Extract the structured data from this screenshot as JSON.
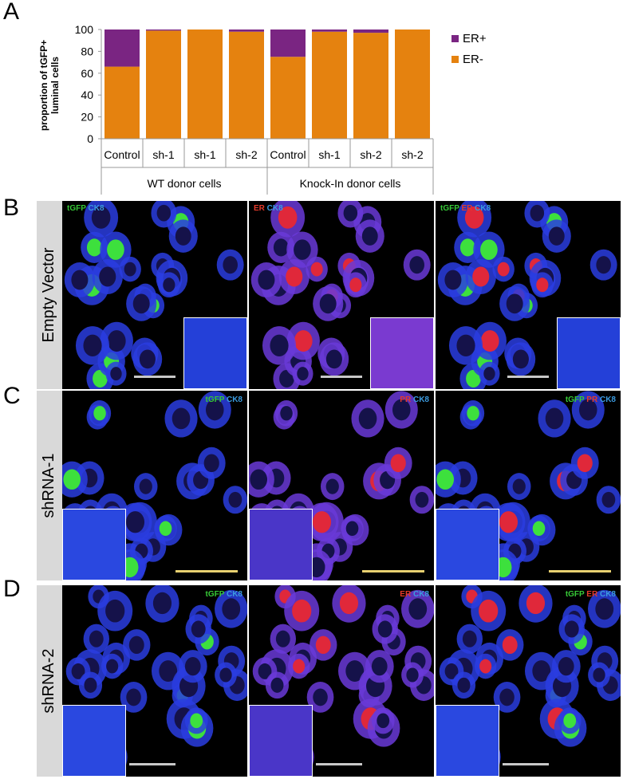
{
  "panels": {
    "A": "A",
    "B": "B",
    "C": "C",
    "D": "D"
  },
  "chart_data": {
    "type": "bar",
    "stacked": true,
    "ylabel": "proportion of tGFP+ luminal cells",
    "ylim": [
      0,
      100
    ],
    "yticks": [
      0,
      20,
      40,
      60,
      80,
      100
    ],
    "categories": [
      "Control",
      "sh-1",
      "sh-1",
      "sh-2",
      "Control",
      "sh-1",
      "sh-2",
      "sh-2"
    ],
    "groups": [
      "WT donor cells",
      "Knock-In donor cells"
    ],
    "series": [
      {
        "name": "ER-",
        "color": "#e5820f",
        "values": [
          66,
          99,
          100,
          98,
          75,
          98,
          97,
          100
        ]
      },
      {
        "name": "ER+",
        "color": "#7a2582",
        "values": [
          34,
          1,
          0,
          2,
          25,
          2,
          3,
          0
        ]
      }
    ],
    "legend_order": [
      "ER+",
      "ER-"
    ],
    "legend_position": "top-right",
    "grid": false
  },
  "rows": [
    {
      "label": "Empty Vector",
      "panels": [
        [
          {
            "t": "tGFP",
            "c": "#36c936"
          },
          {
            "t": " CK8",
            "c": "#3b9be0"
          }
        ],
        [
          {
            "t": "ER",
            "c": "#e53a2a"
          },
          {
            "t": " CK8",
            "c": "#3b9be0"
          }
        ],
        [
          {
            "t": "tGFP",
            "c": "#36c936"
          },
          {
            "t": " ER",
            "c": "#e53a2a"
          },
          {
            "t": " CK8",
            "c": "#3b9be0"
          }
        ]
      ],
      "scalebar_color": "#c8c8c8"
    },
    {
      "label": "shRNA-1",
      "panels": [
        [
          {
            "t": "tGFP",
            "c": "#36c936"
          },
          {
            "t": " CK8",
            "c": "#3b9be0"
          }
        ],
        [
          {
            "t": "PR",
            "c": "#e53a2a"
          },
          {
            "t": " CK8",
            "c": "#3b9be0"
          }
        ],
        [
          {
            "t": "tGFP",
            "c": "#36c936"
          },
          {
            "t": " PR",
            "c": "#e53a2a"
          },
          {
            "t": " CK8",
            "c": "#3b9be0"
          }
        ]
      ],
      "scalebar_color": "#e8d070"
    },
    {
      "label": "shRNA-2",
      "panels": [
        [
          {
            "t": "tGFP",
            "c": "#36c936"
          },
          {
            "t": " CK8",
            "c": "#3b9be0"
          }
        ],
        [
          {
            "t": "ER",
            "c": "#e53a2a"
          },
          {
            "t": " CK8",
            "c": "#3b9be0"
          }
        ],
        [
          {
            "t": "tGFP",
            "c": "#36c936"
          },
          {
            "t": " ER",
            "c": "#e53a2a"
          },
          {
            "t": " CK8",
            "c": "#3b9be0"
          }
        ]
      ],
      "scalebar_color": "#c8c8c8"
    }
  ],
  "colors": {
    "ck8": "#2a3de0",
    "gfp": "#3de03d",
    "er": "#e0283a",
    "label_band": "#d9d9d9"
  }
}
